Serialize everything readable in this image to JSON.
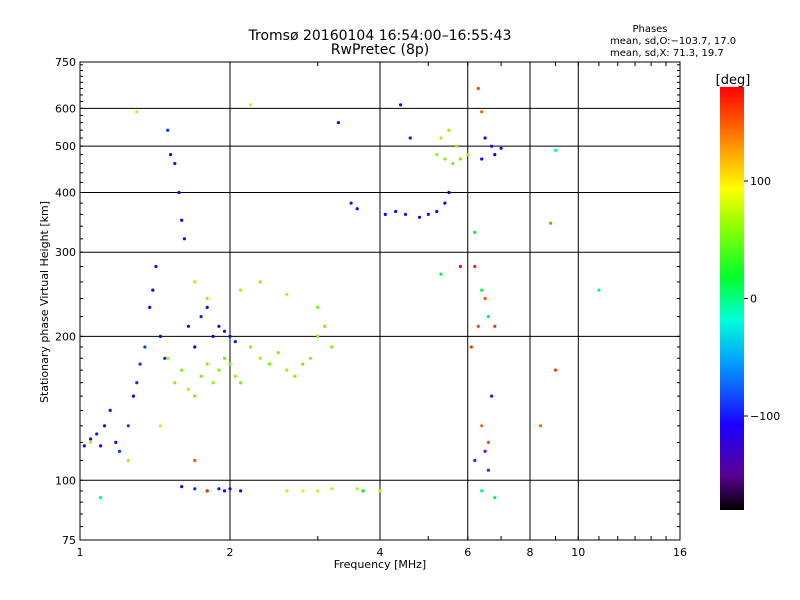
{
  "chart_data": {
    "type": "scatter",
    "title": "Tromsø 20160104 16:54:00–16:55:43",
    "subtitle": "RwPretec (8p)",
    "xlabel": "Frequency [MHz]",
    "ylabel": "Stationary phase Virtual Height [km]",
    "x_scale": "log",
    "y_scale": "log",
    "xlim": [
      1,
      16
    ],
    "ylim": [
      75,
      750
    ],
    "x_ticks": [
      1,
      2,
      4,
      6,
      8,
      10,
      16
    ],
    "y_ticks": [
      75,
      100,
      200,
      300,
      400,
      500,
      600,
      750
    ],
    "grid": true,
    "phase_box": {
      "title": "Phases",
      "line1": "mean, sd,O:−103.7, 17.0",
      "line2": "mean, sd,X:  71.3, 19.7"
    },
    "colorbar": {
      "label": "[deg]",
      "ticks": [
        "100",
        "0",
        "−100"
      ],
      "tick_values": [
        100,
        0,
        -100
      ],
      "range": [
        -180,
        180
      ],
      "colormap": "rainbow"
    },
    "series": [
      {
        "values": [
          {
            "x": 1.02,
            "y": 118,
            "c": -110
          },
          {
            "x": 1.05,
            "y": 122,
            "c": -115
          },
          {
            "x": 1.08,
            "y": 125,
            "c": -105
          },
          {
            "x": 1.1,
            "y": 118,
            "c": -120
          },
          {
            "x": 1.12,
            "y": 130,
            "c": -110
          },
          {
            "x": 1.15,
            "y": 140,
            "c": -108
          },
          {
            "x": 1.18,
            "y": 120,
            "c": -112
          },
          {
            "x": 1.2,
            "y": 115,
            "c": -100
          },
          {
            "x": 1.25,
            "y": 130,
            "c": -95
          },
          {
            "x": 1.28,
            "y": 150,
            "c": -110
          },
          {
            "x": 1.3,
            "y": 160,
            "c": -105
          },
          {
            "x": 1.32,
            "y": 175,
            "c": -100
          },
          {
            "x": 1.35,
            "y": 190,
            "c": -95
          },
          {
            "x": 1.38,
            "y": 230,
            "c": -110
          },
          {
            "x": 1.4,
            "y": 250,
            "c": -112
          },
          {
            "x": 1.42,
            "y": 280,
            "c": -108
          },
          {
            "x": 1.45,
            "y": 200,
            "c": -118
          },
          {
            "x": 1.48,
            "y": 180,
            "c": -105
          },
          {
            "x": 1.5,
            "y": 540,
            "c": -100
          },
          {
            "x": 1.52,
            "y": 480,
            "c": -110
          },
          {
            "x": 1.55,
            "y": 460,
            "c": -105
          },
          {
            "x": 1.58,
            "y": 400,
            "c": -108
          },
          {
            "x": 1.6,
            "y": 350,
            "c": -112
          },
          {
            "x": 1.62,
            "y": 320,
            "c": -110
          },
          {
            "x": 1.65,
            "y": 210,
            "c": -120
          },
          {
            "x": 1.7,
            "y": 190,
            "c": -115
          },
          {
            "x": 1.75,
            "y": 220,
            "c": -105
          },
          {
            "x": 1.8,
            "y": 230,
            "c": -110
          },
          {
            "x": 1.85,
            "y": 200,
            "c": -118
          },
          {
            "x": 1.9,
            "y": 210,
            "c": -112
          },
          {
            "x": 1.95,
            "y": 205,
            "c": -108
          },
          {
            "x": 2.0,
            "y": 200,
            "c": -110
          },
          {
            "x": 2.05,
            "y": 195,
            "c": -105
          },
          {
            "x": 1.6,
            "y": 97,
            "c": -110
          },
          {
            "x": 1.7,
            "y": 96,
            "c": -105
          },
          {
            "x": 1.8,
            "y": 95,
            "c": -112
          },
          {
            "x": 1.9,
            "y": 96,
            "c": -108
          },
          {
            "x": 1.95,
            "y": 95,
            "c": -110
          },
          {
            "x": 2.0,
            "y": 96,
            "c": -115
          },
          {
            "x": 2.1,
            "y": 95,
            "c": -110
          },
          {
            "x": 3.3,
            "y": 560,
            "c": -110
          },
          {
            "x": 3.5,
            "y": 380,
            "c": -105
          },
          {
            "x": 3.6,
            "y": 370,
            "c": -108
          },
          {
            "x": 4.1,
            "y": 360,
            "c": -110
          },
          {
            "x": 4.3,
            "y": 365,
            "c": -112
          },
          {
            "x": 4.5,
            "y": 360,
            "c": -105
          },
          {
            "x": 4.8,
            "y": 355,
            "c": -110
          },
          {
            "x": 5.0,
            "y": 360,
            "c": -108
          },
          {
            "x": 5.2,
            "y": 365,
            "c": -110
          },
          {
            "x": 5.4,
            "y": 380,
            "c": -112
          },
          {
            "x": 5.5,
            "y": 400,
            "c": -115
          },
          {
            "x": 4.4,
            "y": 610,
            "c": -110
          },
          {
            "x": 4.6,
            "y": 520,
            "c": -105
          },
          {
            "x": 6.5,
            "y": 520,
            "c": -110
          },
          {
            "x": 6.7,
            "y": 500,
            "c": -120
          },
          {
            "x": 6.8,
            "y": 480,
            "c": -115
          },
          {
            "x": 7.0,
            "y": 495,
            "c": -110
          },
          {
            "x": 6.4,
            "y": 470,
            "c": -125
          },
          {
            "x": 1.5,
            "y": 180,
            "c": 80
          },
          {
            "x": 1.55,
            "y": 160,
            "c": 75
          },
          {
            "x": 1.6,
            "y": 170,
            "c": 70
          },
          {
            "x": 1.65,
            "y": 155,
            "c": 85
          },
          {
            "x": 1.7,
            "y": 150,
            "c": 70
          },
          {
            "x": 1.75,
            "y": 165,
            "c": 65
          },
          {
            "x": 1.8,
            "y": 175,
            "c": 75
          },
          {
            "x": 1.85,
            "y": 160,
            "c": 80
          },
          {
            "x": 1.9,
            "y": 170,
            "c": 70
          },
          {
            "x": 1.95,
            "y": 180,
            "c": 65
          },
          {
            "x": 2.0,
            "y": 175,
            "c": 72
          },
          {
            "x": 2.05,
            "y": 165,
            "c": 78
          },
          {
            "x": 2.1,
            "y": 160,
            "c": 70
          },
          {
            "x": 2.2,
            "y": 190,
            "c": 75
          },
          {
            "x": 2.3,
            "y": 180,
            "c": 80
          },
          {
            "x": 2.4,
            "y": 175,
            "c": 70
          },
          {
            "x": 2.5,
            "y": 185,
            "c": 72
          },
          {
            "x": 2.6,
            "y": 170,
            "c": 78
          },
          {
            "x": 2.7,
            "y": 165,
            "c": 70
          },
          {
            "x": 2.8,
            "y": 175,
            "c": 65
          },
          {
            "x": 2.9,
            "y": 180,
            "c": 75
          },
          {
            "x": 3.0,
            "y": 200,
            "c": 70
          },
          {
            "x": 3.1,
            "y": 210,
            "c": 68
          },
          {
            "x": 3.2,
            "y": 190,
            "c": 72
          },
          {
            "x": 2.1,
            "y": 250,
            "c": 80
          },
          {
            "x": 2.3,
            "y": 260,
            "c": 75
          },
          {
            "x": 2.6,
            "y": 245,
            "c": 82
          },
          {
            "x": 3.0,
            "y": 230,
            "c": 70
          },
          {
            "x": 1.7,
            "y": 260,
            "c": 85
          },
          {
            "x": 1.8,
            "y": 240,
            "c": 78
          },
          {
            "x": 2.6,
            "y": 95,
            "c": 90
          },
          {
            "x": 2.8,
            "y": 95,
            "c": 100
          },
          {
            "x": 3.0,
            "y": 95,
            "c": 95
          },
          {
            "x": 3.2,
            "y": 96,
            "c": 92
          },
          {
            "x": 3.6,
            "y": 96,
            "c": 90
          },
          {
            "x": 4.0,
            "y": 95,
            "c": 88
          },
          {
            "x": 5.2,
            "y": 480,
            "c": 80
          },
          {
            "x": 5.4,
            "y": 470,
            "c": 75
          },
          {
            "x": 5.6,
            "y": 460,
            "c": 70
          },
          {
            "x": 5.8,
            "y": 470,
            "c": 72
          },
          {
            "x": 6.0,
            "y": 480,
            "c": 78
          },
          {
            "x": 5.3,
            "y": 520,
            "c": 85
          },
          {
            "x": 5.5,
            "y": 540,
            "c": 80
          },
          {
            "x": 5.7,
            "y": 500,
            "c": 75
          },
          {
            "x": 1.3,
            "y": 590,
            "c": 90
          },
          {
            "x": 2.2,
            "y": 610,
            "c": 95
          },
          {
            "x": 1.05,
            "y": 120,
            "c": 90
          },
          {
            "x": 1.25,
            "y": 110,
            "c": 80
          },
          {
            "x": 1.45,
            "y": 130,
            "c": 95
          },
          {
            "x": 6.3,
            "y": 660,
            "c": 160
          },
          {
            "x": 6.4,
            "y": 590,
            "c": 150
          },
          {
            "x": 6.2,
            "y": 280,
            "c": 170
          },
          {
            "x": 5.8,
            "y": 280,
            "c": 175
          },
          {
            "x": 6.3,
            "y": 210,
            "c": 160
          },
          {
            "x": 6.5,
            "y": 240,
            "c": 155
          },
          {
            "x": 6.8,
            "y": 210,
            "c": 165
          },
          {
            "x": 6.1,
            "y": 190,
            "c": 160
          },
          {
            "x": 6.4,
            "y": 130,
            "c": 150
          },
          {
            "x": 6.6,
            "y": 120,
            "c": 155
          },
          {
            "x": 9.0,
            "y": 170,
            "c": 160
          },
          {
            "x": 8.4,
            "y": 130,
            "c": 150
          },
          {
            "x": 8.8,
            "y": 345,
            "c": 145
          },
          {
            "x": 1.7,
            "y": 110,
            "c": 155
          },
          {
            "x": 1.8,
            "y": 95,
            "c": 165
          },
          {
            "x": 6.2,
            "y": 330,
            "c": 20
          },
          {
            "x": 6.4,
            "y": 250,
            "c": 10
          },
          {
            "x": 6.6,
            "y": 220,
            "c": 5
          },
          {
            "x": 5.3,
            "y": 270,
            "c": 15
          },
          {
            "x": 9.0,
            "y": 490,
            "c": -30
          },
          {
            "x": 11.0,
            "y": 250,
            "c": -20
          },
          {
            "x": 6.4,
            "y": 95,
            "c": -10
          },
          {
            "x": 6.8,
            "y": 92,
            "c": 10
          },
          {
            "x": 3.7,
            "y": 95,
            "c": 20
          },
          {
            "x": 1.1,
            "y": 92,
            "c": -20
          },
          {
            "x": 6.2,
            "y": 110,
            "c": -150
          },
          {
            "x": 6.5,
            "y": 115,
            "c": -145
          },
          {
            "x": 6.6,
            "y": 105,
            "c": -150
          },
          {
            "x": 6.7,
            "y": 150,
            "c": -140
          }
        ]
      }
    ]
  }
}
